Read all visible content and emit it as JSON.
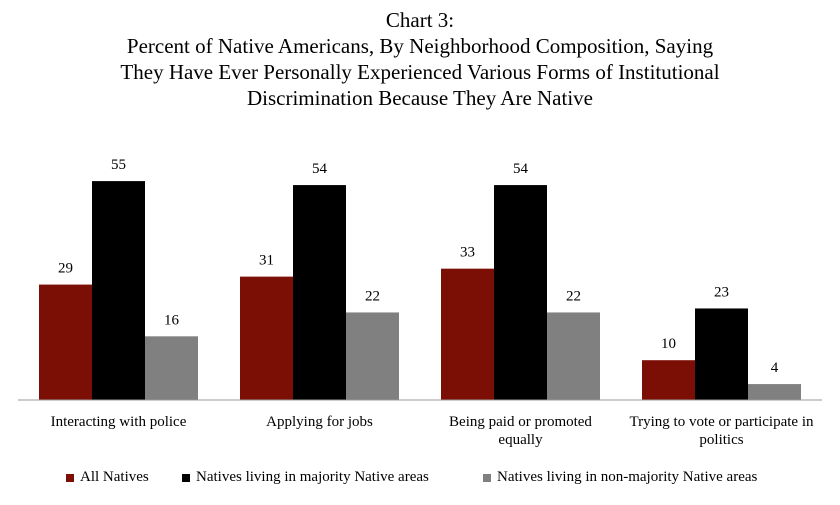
{
  "chart_data": {
    "type": "bar",
    "title": [
      "Chart 3:",
      "Percent of Native Americans, By Neighborhood Composition, Saying",
      "They Have Ever Personally Experienced Various Forms of Institutional",
      "Discrimination Because They Are Native"
    ],
    "categories": [
      "Interacting with police",
      "Applying for jobs",
      "Being paid or promoted equally",
      "Trying to vote or participate in politics"
    ],
    "series": [
      {
        "name": "All Natives",
        "color": "#7b0f06",
        "values": [
          29,
          31,
          33,
          10
        ]
      },
      {
        "name": "Natives living in majority Native areas",
        "color": "#000000",
        "values": [
          55,
          54,
          54,
          23
        ]
      },
      {
        "name": "Natives living in non-majority Native areas",
        "color": "#808080",
        "values": [
          16,
          22,
          22,
          4
        ]
      }
    ],
    "legend": "bottom"
  }
}
